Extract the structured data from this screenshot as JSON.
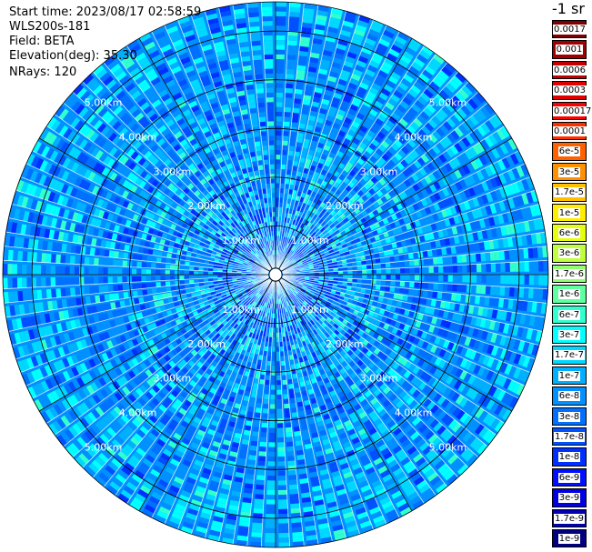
{
  "info": {
    "start_time": "Start time: 2023/08/17 02:58:59",
    "instrument": "WLS200s-181",
    "field": "Field: BETA",
    "elevation": "Elevation(deg): 35.30",
    "nrays": "NRays: 120"
  },
  "colorbar": {
    "title": "-1 sr",
    "levels": [
      {
        "label": "0.0017",
        "color": "#800000"
      },
      {
        "label": "0.001",
        "color": "#a00000"
      },
      {
        "label": "0.0006",
        "color": "#c00000"
      },
      {
        "label": "0.0003",
        "color": "#e00000"
      },
      {
        "label": "0.00017",
        "color": "#ff0000"
      },
      {
        "label": "0.0001",
        "color": "#ff3000"
      },
      {
        "label": "6e-5",
        "color": "#ff6000"
      },
      {
        "label": "3e-5",
        "color": "#ff9000"
      },
      {
        "label": "1.7e-5",
        "color": "#ffc000"
      },
      {
        "label": "1e-5",
        "color": "#ffee00"
      },
      {
        "label": "6e-6",
        "color": "#e6ff10"
      },
      {
        "label": "3e-6",
        "color": "#c0ff40"
      },
      {
        "label": "1.7e-6",
        "color": "#90ff70"
      },
      {
        "label": "1e-6",
        "color": "#60ffa0"
      },
      {
        "label": "6e-7",
        "color": "#30ffd0"
      },
      {
        "label": "3e-7",
        "color": "#00ffff"
      },
      {
        "label": "1.7e-7",
        "color": "#00d8ff"
      },
      {
        "label": "1e-7",
        "color": "#00b0ff"
      },
      {
        "label": "6e-8",
        "color": "#0090ff"
      },
      {
        "label": "3e-8",
        "color": "#0070ff"
      },
      {
        "label": "1.7e-8",
        "color": "#0050ff"
      },
      {
        "label": "1e-8",
        "color": "#0030ff"
      },
      {
        "label": "6e-9",
        "color": "#0010ff"
      },
      {
        "label": "3e-9",
        "color": "#0000e0"
      },
      {
        "label": "1.7e-9",
        "color": "#0000b0"
      },
      {
        "label": "1e-9",
        "color": "#000080"
      }
    ]
  },
  "chart_data": {
    "type": "heatmap",
    "projection": "polar-ppi",
    "rays": 120,
    "range_km_max": 5.6,
    "range_rings_km": [
      1.0,
      2.0,
      3.0,
      4.0,
      5.0
    ],
    "ring_labels": [
      "1.00km",
      "2.00km",
      "3.00km",
      "4.00km",
      "5.00km"
    ],
    "spoke_angles_deg": [
      0,
      30,
      60,
      90,
      120,
      150,
      180,
      210,
      240,
      270,
      300,
      330
    ],
    "dominant_value_range": [
      "3e-9",
      "3e-7"
    ],
    "color_scale": "log"
  }
}
